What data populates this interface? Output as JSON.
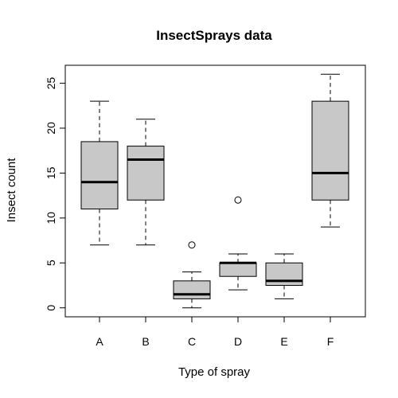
{
  "chart_data": {
    "type": "boxplot",
    "title": "InsectSprays data",
    "xlabel": "Type of spray",
    "ylabel": "Insect count",
    "ylim": [
      -1,
      27
    ],
    "yticks": [
      0,
      5,
      10,
      15,
      20,
      25
    ],
    "categories": [
      "A",
      "B",
      "C",
      "D",
      "E",
      "F"
    ],
    "box_color": "#c8c8c8",
    "grid": false,
    "boxes": [
      {
        "category": "A",
        "min": 7,
        "q1": 11,
        "median": 14,
        "q3": 18.5,
        "max": 23,
        "outliers": []
      },
      {
        "category": "B",
        "min": 7,
        "q1": 12,
        "median": 16.5,
        "q3": 18,
        "max": 21,
        "outliers": []
      },
      {
        "category": "C",
        "min": 0,
        "q1": 1,
        "median": 1.5,
        "q3": 3,
        "max": 4,
        "outliers": [
          7
        ]
      },
      {
        "category": "D",
        "min": 2,
        "q1": 3.5,
        "median": 5,
        "q3": 5,
        "max": 6,
        "outliers": [
          12
        ]
      },
      {
        "category": "E",
        "min": 1,
        "q1": 2.5,
        "median": 3,
        "q3": 5,
        "max": 6,
        "outliers": []
      },
      {
        "category": "F",
        "min": 9,
        "q1": 12,
        "median": 15,
        "q3": 23,
        "max": 26,
        "outliers": []
      }
    ]
  }
}
